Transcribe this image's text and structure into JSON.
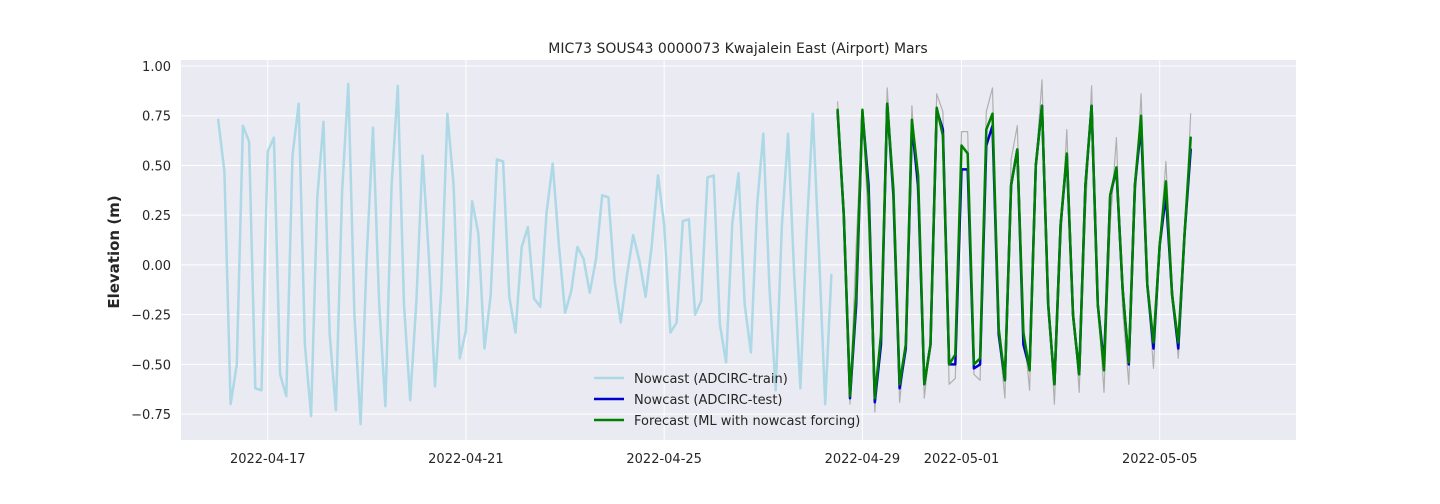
{
  "chart_data": {
    "type": "line",
    "title": "MIC73 SOUS43 0000073 Kwajalein East (Airport) Mars",
    "xlabel": "",
    "ylabel": "Elevation (m)",
    "xlim": [
      "2022-04-15T06:00",
      "2022-05-07T18:00"
    ],
    "ylim": [
      -0.88,
      1.03
    ],
    "yticks": [
      1.0,
      0.75,
      0.5,
      0.25,
      0.0,
      -0.25,
      -0.5,
      -0.75
    ],
    "ytick_labels": [
      "1.00",
      "0.75",
      "0.50",
      "0.25",
      "0.00",
      "−0.25",
      "−0.50",
      "−0.75"
    ],
    "xticks": [
      "2022-04-17",
      "2022-04-21",
      "2022-04-25",
      "2022-04-29",
      "2022-05-01",
      "2022-05-05"
    ],
    "grid": true,
    "background": "#eaeaf2",
    "legend_position": "lower-center",
    "series": [
      {
        "name": "Nowcast (ADCIRC-train)",
        "color": "#add8e6",
        "legend": true,
        "x_start": "2022-04-16T00:00",
        "step_hours": 3,
        "values": [
          0.73,
          0.47,
          -0.7,
          -0.5,
          0.7,
          0.62,
          -0.62,
          -0.63,
          0.57,
          0.64,
          -0.55,
          -0.66,
          0.55,
          0.81,
          -0.4,
          -0.76,
          0.34,
          0.72,
          -0.35,
          -0.73,
          0.37,
          0.91,
          -0.25,
          -0.8,
          0.05,
          0.69,
          -0.2,
          -0.71,
          0.4,
          0.9,
          -0.2,
          -0.68,
          -0.18,
          0.55,
          0.05,
          -0.61,
          -0.13,
          0.76,
          0.4,
          -0.47,
          -0.33,
          0.32,
          0.16,
          -0.42,
          -0.15,
          0.53,
          0.52,
          -0.16,
          -0.34,
          0.09,
          0.19,
          -0.17,
          -0.21,
          0.26,
          0.51,
          0.1,
          -0.24,
          -0.13,
          0.09,
          0.03,
          -0.14,
          0.03,
          0.35,
          0.34,
          -0.08,
          -0.29,
          -0.05,
          0.15,
          0.02,
          -0.16,
          0.1,
          0.45,
          0.2,
          -0.34,
          -0.29,
          0.22,
          0.23,
          -0.25,
          -0.18,
          0.44,
          0.45,
          -0.3,
          -0.49,
          0.21,
          0.46,
          -0.2,
          -0.44,
          0.3,
          0.66,
          -0.12,
          -0.63,
          0.2,
          0.66,
          -0.06,
          -0.62,
          0.16,
          0.76,
          0.06,
          -0.7,
          -0.05
        ]
      },
      {
        "name": "",
        "color": "#b0b0b0",
        "legend": false,
        "x_start": "2022-04-28T12:00",
        "step_hours": 3,
        "values": [
          0.82,
          0.3,
          -0.7,
          0.1,
          0.77,
          0.2,
          -0.74,
          -0.3,
          0.89,
          0.4,
          -0.69,
          -0.38,
          0.8,
          0.3,
          -0.67,
          -0.38,
          0.86,
          0.77,
          -0.6,
          -0.57,
          0.67,
          0.67,
          -0.55,
          -0.58,
          0.77,
          0.89,
          -0.35,
          -0.67,
          0.53,
          0.7,
          -0.3,
          -0.63,
          0.5,
          0.93,
          -0.15,
          -0.7,
          0.1,
          0.68,
          -0.19,
          -0.64,
          0.25,
          0.9,
          -0.17,
          -0.64,
          0.2,
          0.64,
          -0.22,
          -0.6,
          0.3,
          0.86,
          -0.1,
          -0.52,
          0.1,
          0.52,
          -0.1,
          -0.47,
          0.1,
          0.76
        ]
      },
      {
        "name": "Nowcast (ADCIRC-test)",
        "color": "#0000cc",
        "legend": true,
        "x_start": "2022-04-28T12:00",
        "step_hours": 3,
        "values": [
          0.77,
          0.25,
          -0.67,
          -0.2,
          0.77,
          0.4,
          -0.69,
          -0.4,
          0.81,
          0.35,
          -0.62,
          -0.42,
          0.7,
          0.4,
          -0.6,
          -0.4,
          0.78,
          0.68,
          -0.5,
          -0.5,
          0.48,
          0.48,
          -0.52,
          -0.5,
          0.6,
          0.7,
          -0.35,
          -0.58,
          0.4,
          0.58,
          -0.4,
          -0.52,
          0.5,
          0.8,
          -0.2,
          -0.6,
          0.2,
          0.55,
          -0.25,
          -0.55,
          0.4,
          0.8,
          -0.2,
          -0.5,
          0.35,
          0.48,
          -0.12,
          -0.5,
          0.4,
          0.7,
          -0.1,
          -0.42,
          0.1,
          0.35,
          -0.15,
          -0.42,
          0.15,
          0.58
        ]
      },
      {
        "name": "Forecast (ML with nowcast forcing)",
        "color": "#008000",
        "legend": true,
        "x_start": "2022-04-28T12:00",
        "step_hours": 3,
        "values": [
          0.78,
          0.25,
          -0.66,
          -0.15,
          0.78,
          0.35,
          -0.67,
          -0.35,
          0.81,
          0.38,
          -0.6,
          -0.4,
          0.73,
          0.45,
          -0.6,
          -0.4,
          0.79,
          0.65,
          -0.5,
          -0.45,
          0.6,
          0.56,
          -0.5,
          -0.47,
          0.68,
          0.76,
          -0.32,
          -0.58,
          0.4,
          0.58,
          -0.34,
          -0.53,
          0.5,
          0.8,
          -0.2,
          -0.6,
          0.2,
          0.56,
          -0.25,
          -0.55,
          0.4,
          0.8,
          -0.2,
          -0.53,
          0.35,
          0.49,
          -0.12,
          -0.49,
          0.4,
          0.75,
          -0.1,
          -0.39,
          0.1,
          0.42,
          -0.15,
          -0.39,
          0.15,
          0.64
        ]
      }
    ]
  }
}
